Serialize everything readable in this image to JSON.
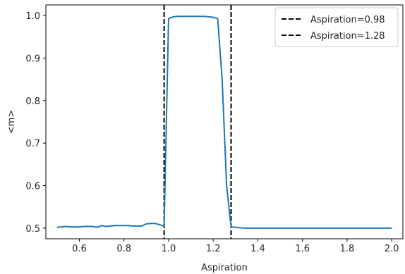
{
  "chart_data": {
    "type": "line",
    "xlabel": "Aspiration",
    "ylabel": "<m>",
    "xlim": [
      0.45,
      2.05
    ],
    "ylim": [
      0.475,
      1.025
    ],
    "xticks": [
      {
        "value": 0.6,
        "label": "0.6"
      },
      {
        "value": 0.8,
        "label": "0.8"
      },
      {
        "value": 1.0,
        "label": "1.0"
      },
      {
        "value": 1.2,
        "label": "1.2"
      },
      {
        "value": 1.4,
        "label": "1.4"
      },
      {
        "value": 1.6,
        "label": "1.6"
      },
      {
        "value": 1.8,
        "label": "1.8"
      },
      {
        "value": 2.0,
        "label": "2.0"
      }
    ],
    "yticks": [
      {
        "value": 0.5,
        "label": "0.5"
      },
      {
        "value": 0.6,
        "label": "0.6"
      },
      {
        "value": 0.7,
        "label": "0.7"
      },
      {
        "value": 0.8,
        "label": "0.8"
      },
      {
        "value": 0.9,
        "label": "0.9"
      },
      {
        "value": 1.0,
        "label": "1.0"
      }
    ],
    "grid": false,
    "legend_position": "top-right",
    "series": [
      {
        "color": "#1f77b4",
        "x": [
          0.5,
          0.52,
          0.54,
          0.56,
          0.58,
          0.6,
          0.62,
          0.64,
          0.66,
          0.68,
          0.7,
          0.72,
          0.74,
          0.76,
          0.78,
          0.8,
          0.82,
          0.84,
          0.86,
          0.88,
          0.9,
          0.92,
          0.94,
          0.96,
          0.98,
          1.0,
          1.02,
          1.04,
          1.06,
          1.08,
          1.1,
          1.12,
          1.14,
          1.16,
          1.18,
          1.2,
          1.22,
          1.24,
          1.26,
          1.28,
          1.3,
          1.32,
          1.34,
          1.36,
          1.38,
          1.4,
          1.45,
          1.5,
          1.55,
          1.6,
          1.65,
          1.7,
          1.75,
          1.8,
          1.85,
          1.9,
          1.95,
          2.0
        ],
        "y": [
          0.502,
          0.503,
          0.504,
          0.503,
          0.503,
          0.503,
          0.504,
          0.504,
          0.504,
          0.502,
          0.506,
          0.504,
          0.505,
          0.506,
          0.506,
          0.506,
          0.506,
          0.505,
          0.505,
          0.505,
          0.51,
          0.511,
          0.511,
          0.508,
          0.505,
          0.993,
          0.997,
          0.998,
          0.998,
          0.998,
          0.998,
          0.998,
          0.998,
          0.998,
          0.997,
          0.996,
          0.993,
          0.85,
          0.6,
          0.503,
          0.502,
          0.501,
          0.5,
          0.5,
          0.5,
          0.5,
          0.5,
          0.5,
          0.5,
          0.5,
          0.5,
          0.5,
          0.5,
          0.5,
          0.5,
          0.5,
          0.5,
          0.5
        ]
      }
    ],
    "vlines": [
      {
        "x": 0.98,
        "color": "#000000",
        "label": "Aspiration=0.98"
      },
      {
        "x": 1.28,
        "color": "#000000",
        "label": "Aspiration=1.28"
      }
    ]
  }
}
